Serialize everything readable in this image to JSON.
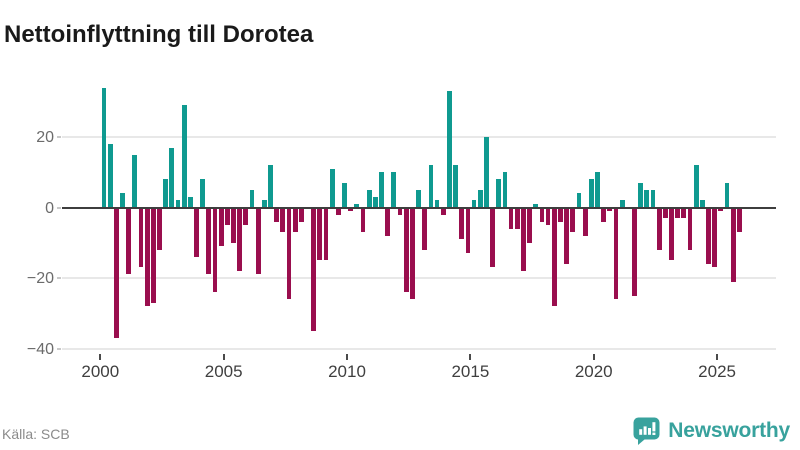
{
  "title": "Nettoinflyttning till Dorotea",
  "source": "Källa: SCB",
  "branding": {
    "name": "Newsworthy",
    "logo_icon": "speech-bubble-bar-chart-icon"
  },
  "colors": {
    "positive": "#0f9a90",
    "negative": "#9a0e4e",
    "zero_line": "#3e3e3e",
    "gridline": "#e8e8e8",
    "axis_label": "#6b6b6b",
    "x_label": "#3f3f3f",
    "brand": "#38a29d",
    "title_text": "#1a1a1a",
    "source_text": "#8b8b8b"
  },
  "chart_data": {
    "type": "bar",
    "title": "Nettoinflyttning till Dorotea",
    "period": "quarterly",
    "start": "2000 Q1",
    "end": "2025 Q4",
    "xlabel": "",
    "ylabel": "",
    "ylim": [
      -40,
      36
    ],
    "grid": "horizontal",
    "legend": "none",
    "x_ticks": [
      "2000",
      "2005",
      "2010",
      "2015",
      "2020",
      "2025"
    ],
    "y_ticks": [
      {
        "label": "20",
        "value": 20
      },
      {
        "label": "0",
        "value": 0
      },
      {
        "label": "−20",
        "value": -20
      },
      {
        "label": "−40",
        "value": -40
      }
    ],
    "series": [
      {
        "name": "Nettoinflyttning",
        "values": [
          34,
          18,
          -37,
          4,
          -19,
          15,
          -17,
          -28,
          -27,
          -12,
          8,
          17,
          2,
          29,
          3,
          -14,
          8,
          -19,
          -24,
          -11,
          -5,
          -10,
          -18,
          -5,
          5,
          -19,
          2,
          12,
          -4,
          -7,
          -26,
          -7,
          -4,
          0,
          -35,
          -15,
          -15,
          11,
          -2,
          7,
          -1,
          1,
          -7,
          5,
          3,
          10,
          -8,
          10,
          -2,
          -24,
          -26,
          5,
          -12,
          12,
          2,
          -2,
          33,
          12,
          -9,
          -13,
          2,
          5,
          20,
          -17,
          8,
          10,
          -6,
          -6,
          -18,
          -10,
          1,
          -4,
          -5,
          -28,
          -4,
          -16,
          -7,
          4,
          -8,
          8,
          10,
          -4,
          -1,
          -26,
          2,
          0,
          -25,
          7,
          5,
          5,
          -12,
          -3,
          -15,
          -3,
          -3,
          -12,
          12,
          2,
          -16,
          -17,
          -1,
          7,
          -21,
          -7
        ]
      }
    ]
  }
}
